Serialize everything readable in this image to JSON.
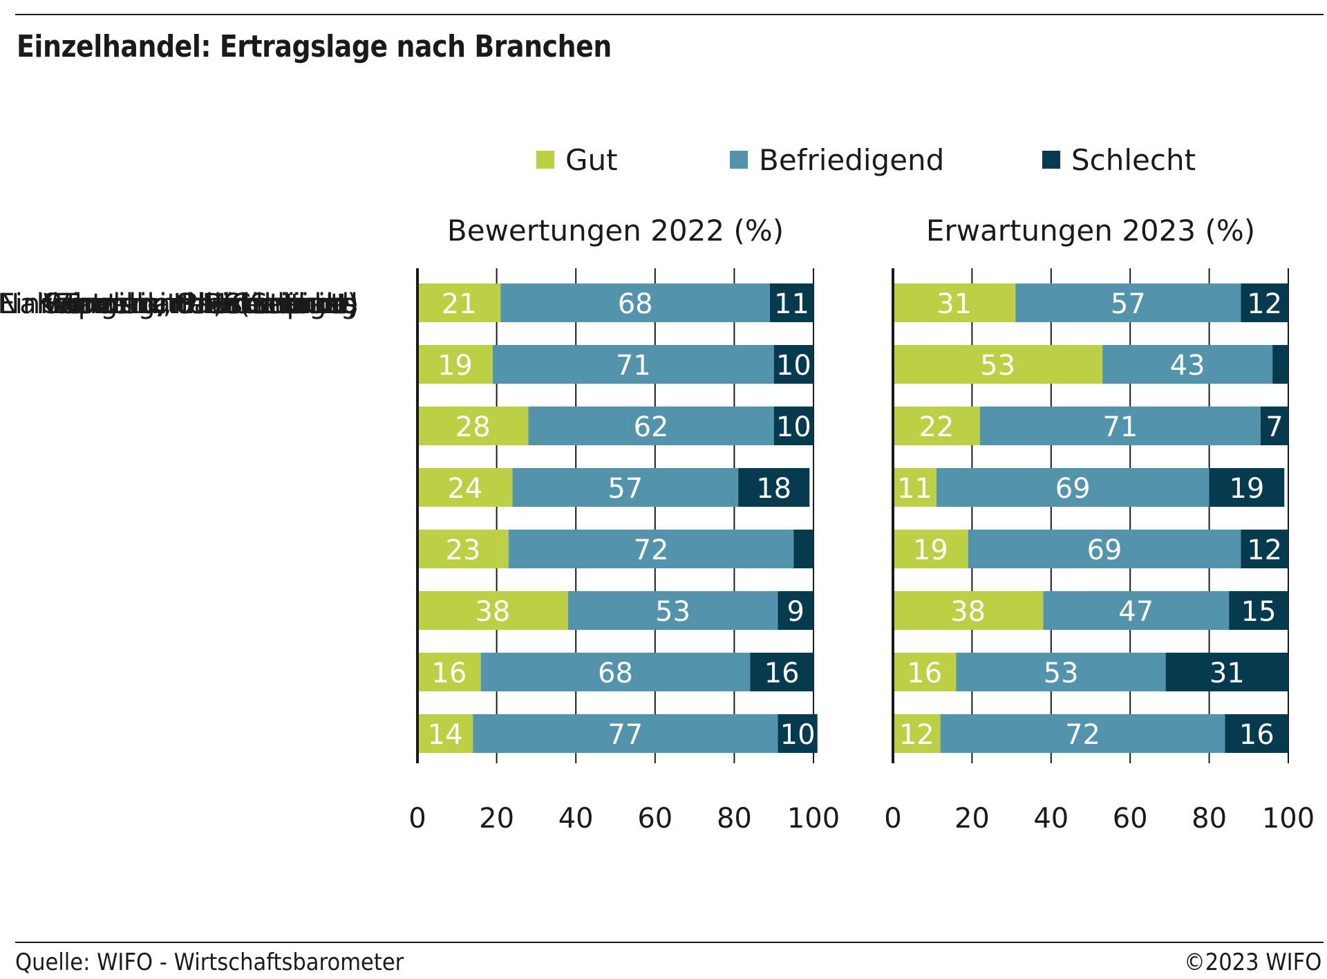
{
  "title": "Einzelhandel: Ertragslage nach Branchen",
  "footer": {
    "source": "Quelle: WIFO - Wirtschaftsbarometer",
    "copyright": "©2023 WIFO"
  },
  "colors": {
    "Gut": "#bccf45",
    "Befriedigend": "#5393ab",
    "Schlecht": "#063a4e",
    "label_light": "#ffffff"
  },
  "chart_data": [
    {
      "type": "bar",
      "orientation": "horizontal",
      "stacked": true,
      "title": "Bewertungen 2022 (%)",
      "categories": [
        "Einzelhandel (Schnitt)",
        "Super- und Minimärkte",
        "Nahrungsmittel, Getränke",
        "Textil und Bekleidung",
        "Einrichtung, Haushaltsart.",
        "Kosmetik, Pharmaprod.",
        "Wander-, Onlinehandel",
        "Sonstiges"
      ],
      "series": [
        {
          "name": "Gut",
          "values": [
            21,
            19,
            28,
            24,
            23,
            38,
            16,
            14
          ],
          "labels": [
            "21",
            "19",
            "28",
            "24",
            "23",
            "38",
            "16",
            "14"
          ]
        },
        {
          "name": "Befriedigend",
          "values": [
            68,
            71,
            62,
            57,
            72,
            53,
            68,
            77
          ],
          "labels": [
            "68",
            "71",
            "62",
            "57",
            "72",
            "53",
            "68",
            "77"
          ]
        },
        {
          "name": "Schlecht",
          "values": [
            11,
            10,
            10,
            18,
            5,
            9,
            16,
            10
          ],
          "labels": [
            "11",
            "10",
            "10",
            "18",
            "",
            "9",
            "16",
            "10"
          ]
        }
      ],
      "xlim": [
        0,
        100
      ],
      "xticks": [
        "0",
        "20",
        "40",
        "60",
        "80",
        "100"
      ],
      "grid": true,
      "legend": "top"
    },
    {
      "type": "bar",
      "orientation": "horizontal",
      "stacked": true,
      "title": "Erwartungen 2023 (%)",
      "categories": [
        "Einzelhandel (Schnitt)",
        "Super- und Minimärkte",
        "Nahrungsmittel, Getränke",
        "Textil und Bekleidung",
        "Einrichtung, Haushaltsart.",
        "Kosmetik, Pharmaprod.",
        "Wander-, Onlinehandel",
        "Sonstiges"
      ],
      "series": [
        {
          "name": "Gut",
          "values": [
            31,
            53,
            22,
            11,
            19,
            38,
            16,
            12
          ],
          "labels": [
            "31",
            "53",
            "22",
            "11",
            "19",
            "38",
            "16",
            "12"
          ]
        },
        {
          "name": "Befriedigend",
          "values": [
            57,
            43,
            71,
            69,
            69,
            47,
            53,
            72
          ],
          "labels": [
            "57",
            "43",
            "71",
            "69",
            "69",
            "47",
            "53",
            "72"
          ]
        },
        {
          "name": "Schlecht",
          "values": [
            12,
            4,
            7,
            19,
            12,
            15,
            31,
            16
          ],
          "labels": [
            "12",
            "",
            "7",
            "19",
            "12",
            "15",
            "31",
            "16"
          ]
        }
      ],
      "xlim": [
        0,
        100
      ],
      "xticks": [
        "0",
        "20",
        "40",
        "60",
        "80",
        "100"
      ],
      "grid": true,
      "legend": "top"
    }
  ]
}
